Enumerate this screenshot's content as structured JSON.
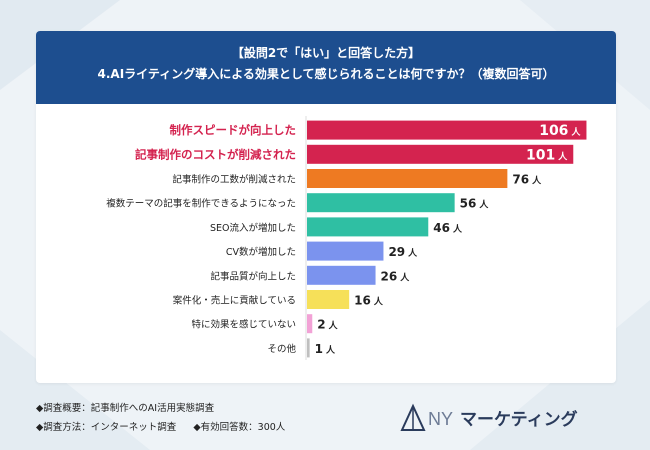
{
  "header": {
    "line1": "【設問2で「はい」と回答した方】",
    "line2": "4.AIライティング導入による効果として感じられることは何ですか？（複数回答可）"
  },
  "chart_data": {
    "type": "bar",
    "orientation": "horizontal",
    "unit": "人",
    "categories": [
      "制作スピードが向上した",
      "記事制作のコストが削減された",
      "記事制作の工数が削減された",
      "複数テーマの記事を制作できるようになった",
      "SEO流入が増加した",
      "CV数が増加した",
      "記事品質が向上した",
      "案件化・売上に貢献している",
      "特に効果を感じていない",
      "その他"
    ],
    "values": [
      106,
      101,
      76,
      56,
      46,
      29,
      26,
      16,
      2,
      1
    ],
    "colors": [
      "#d4234f",
      "#d4234f",
      "#ee7a22",
      "#2fbfa3",
      "#2fbfa3",
      "#7b93ee",
      "#7b93ee",
      "#f6e059",
      "#f2a2d6",
      "#bfbfbf"
    ],
    "highlight_label_color": "#d4234f",
    "xlim": [
      0,
      110
    ]
  },
  "footer": {
    "line1": "◆調査概要：記事制作へのAI活用実態調査",
    "line2a": "◆調査方法：インターネット調査",
    "line2b": "◆有効回答数：300人"
  },
  "logo": {
    "text": "マーケティング",
    "mark": "NY"
  }
}
